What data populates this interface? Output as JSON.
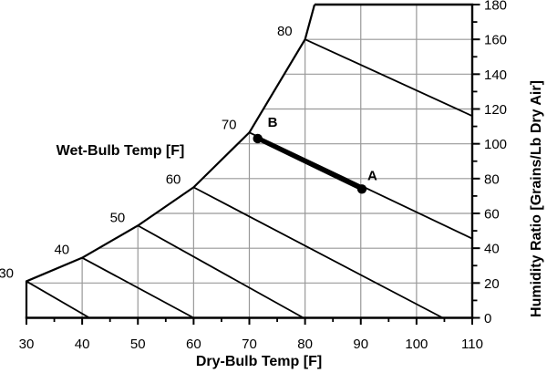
{
  "chart_data": {
    "type": "line",
    "title": "",
    "x_axis": {
      "label": "Dry-Bulb Temp [F]",
      "min": 30,
      "max": 110,
      "major_tick_step": 10,
      "minor_tick_step": 5,
      "tick_labels": [
        "30",
        "40",
        "50",
        "60",
        "70",
        "80",
        "90",
        "100",
        "110"
      ]
    },
    "y_axis": {
      "label": "Humidity Ratio [Grains/Lb Dry Air]",
      "side": "right",
      "min": 0,
      "max": 180,
      "major_tick_step": 20,
      "minor_tick_step": 10,
      "tick_labels": [
        "0",
        "20",
        "40",
        "60",
        "80",
        "100",
        "120",
        "140",
        "160",
        "180"
      ]
    },
    "wet_bulb_title": "Wet-Bulb Temp [F]",
    "saturation_curve": [
      {
        "t": 30,
        "w": 21
      },
      {
        "t": 40,
        "w": 34.5
      },
      {
        "t": 50,
        "w": 53
      },
      {
        "t": 60,
        "w": 75
      },
      {
        "t": 70,
        "w": 106.5
      },
      {
        "t": 80,
        "w": 160
      },
      {
        "t": 81.7,
        "w": 180
      }
    ],
    "wet_bulb_lines": [
      {
        "label": "30",
        "start": {
          "t": 30,
          "w": 21
        },
        "end": {
          "t": 41.3,
          "w": 0
        }
      },
      {
        "label": "40",
        "start": {
          "t": 40,
          "w": 34.5
        },
        "end": {
          "t": 60,
          "w": 0
        }
      },
      {
        "label": "50",
        "start": {
          "t": 50,
          "w": 53
        },
        "end": {
          "t": 79.7,
          "w": 0
        }
      },
      {
        "label": "60",
        "start": {
          "t": 60,
          "w": 75
        },
        "end": {
          "t": 104.7,
          "w": 0
        }
      },
      {
        "label": "70",
        "start": {
          "t": 70,
          "w": 106.5
        },
        "end": {
          "t": 110,
          "w": 45.5
        }
      },
      {
        "label": "80",
        "start": {
          "t": 80,
          "w": 160
        },
        "end": {
          "t": 110,
          "w": 116
        }
      }
    ],
    "points": [
      {
        "label": "A",
        "dry_bulb": 90.2,
        "humidity_ratio": 74,
        "label_offset": [
          6,
          -10
        ]
      },
      {
        "label": "B",
        "dry_bulb": 71.5,
        "humidity_ratio": 103,
        "label_offset": [
          11,
          -13
        ]
      }
    ],
    "process_line": {
      "from": "B",
      "to": "A"
    },
    "grid": {
      "vertical_at": [
        40,
        50,
        60,
        70,
        80,
        90,
        100
      ],
      "horizontal_at": [
        20,
        40,
        60,
        80,
        100,
        120,
        140,
        160
      ]
    },
    "legend": "none",
    "colors": {
      "line": "#000000",
      "grid": "#999999",
      "background": "#ffffff"
    }
  }
}
